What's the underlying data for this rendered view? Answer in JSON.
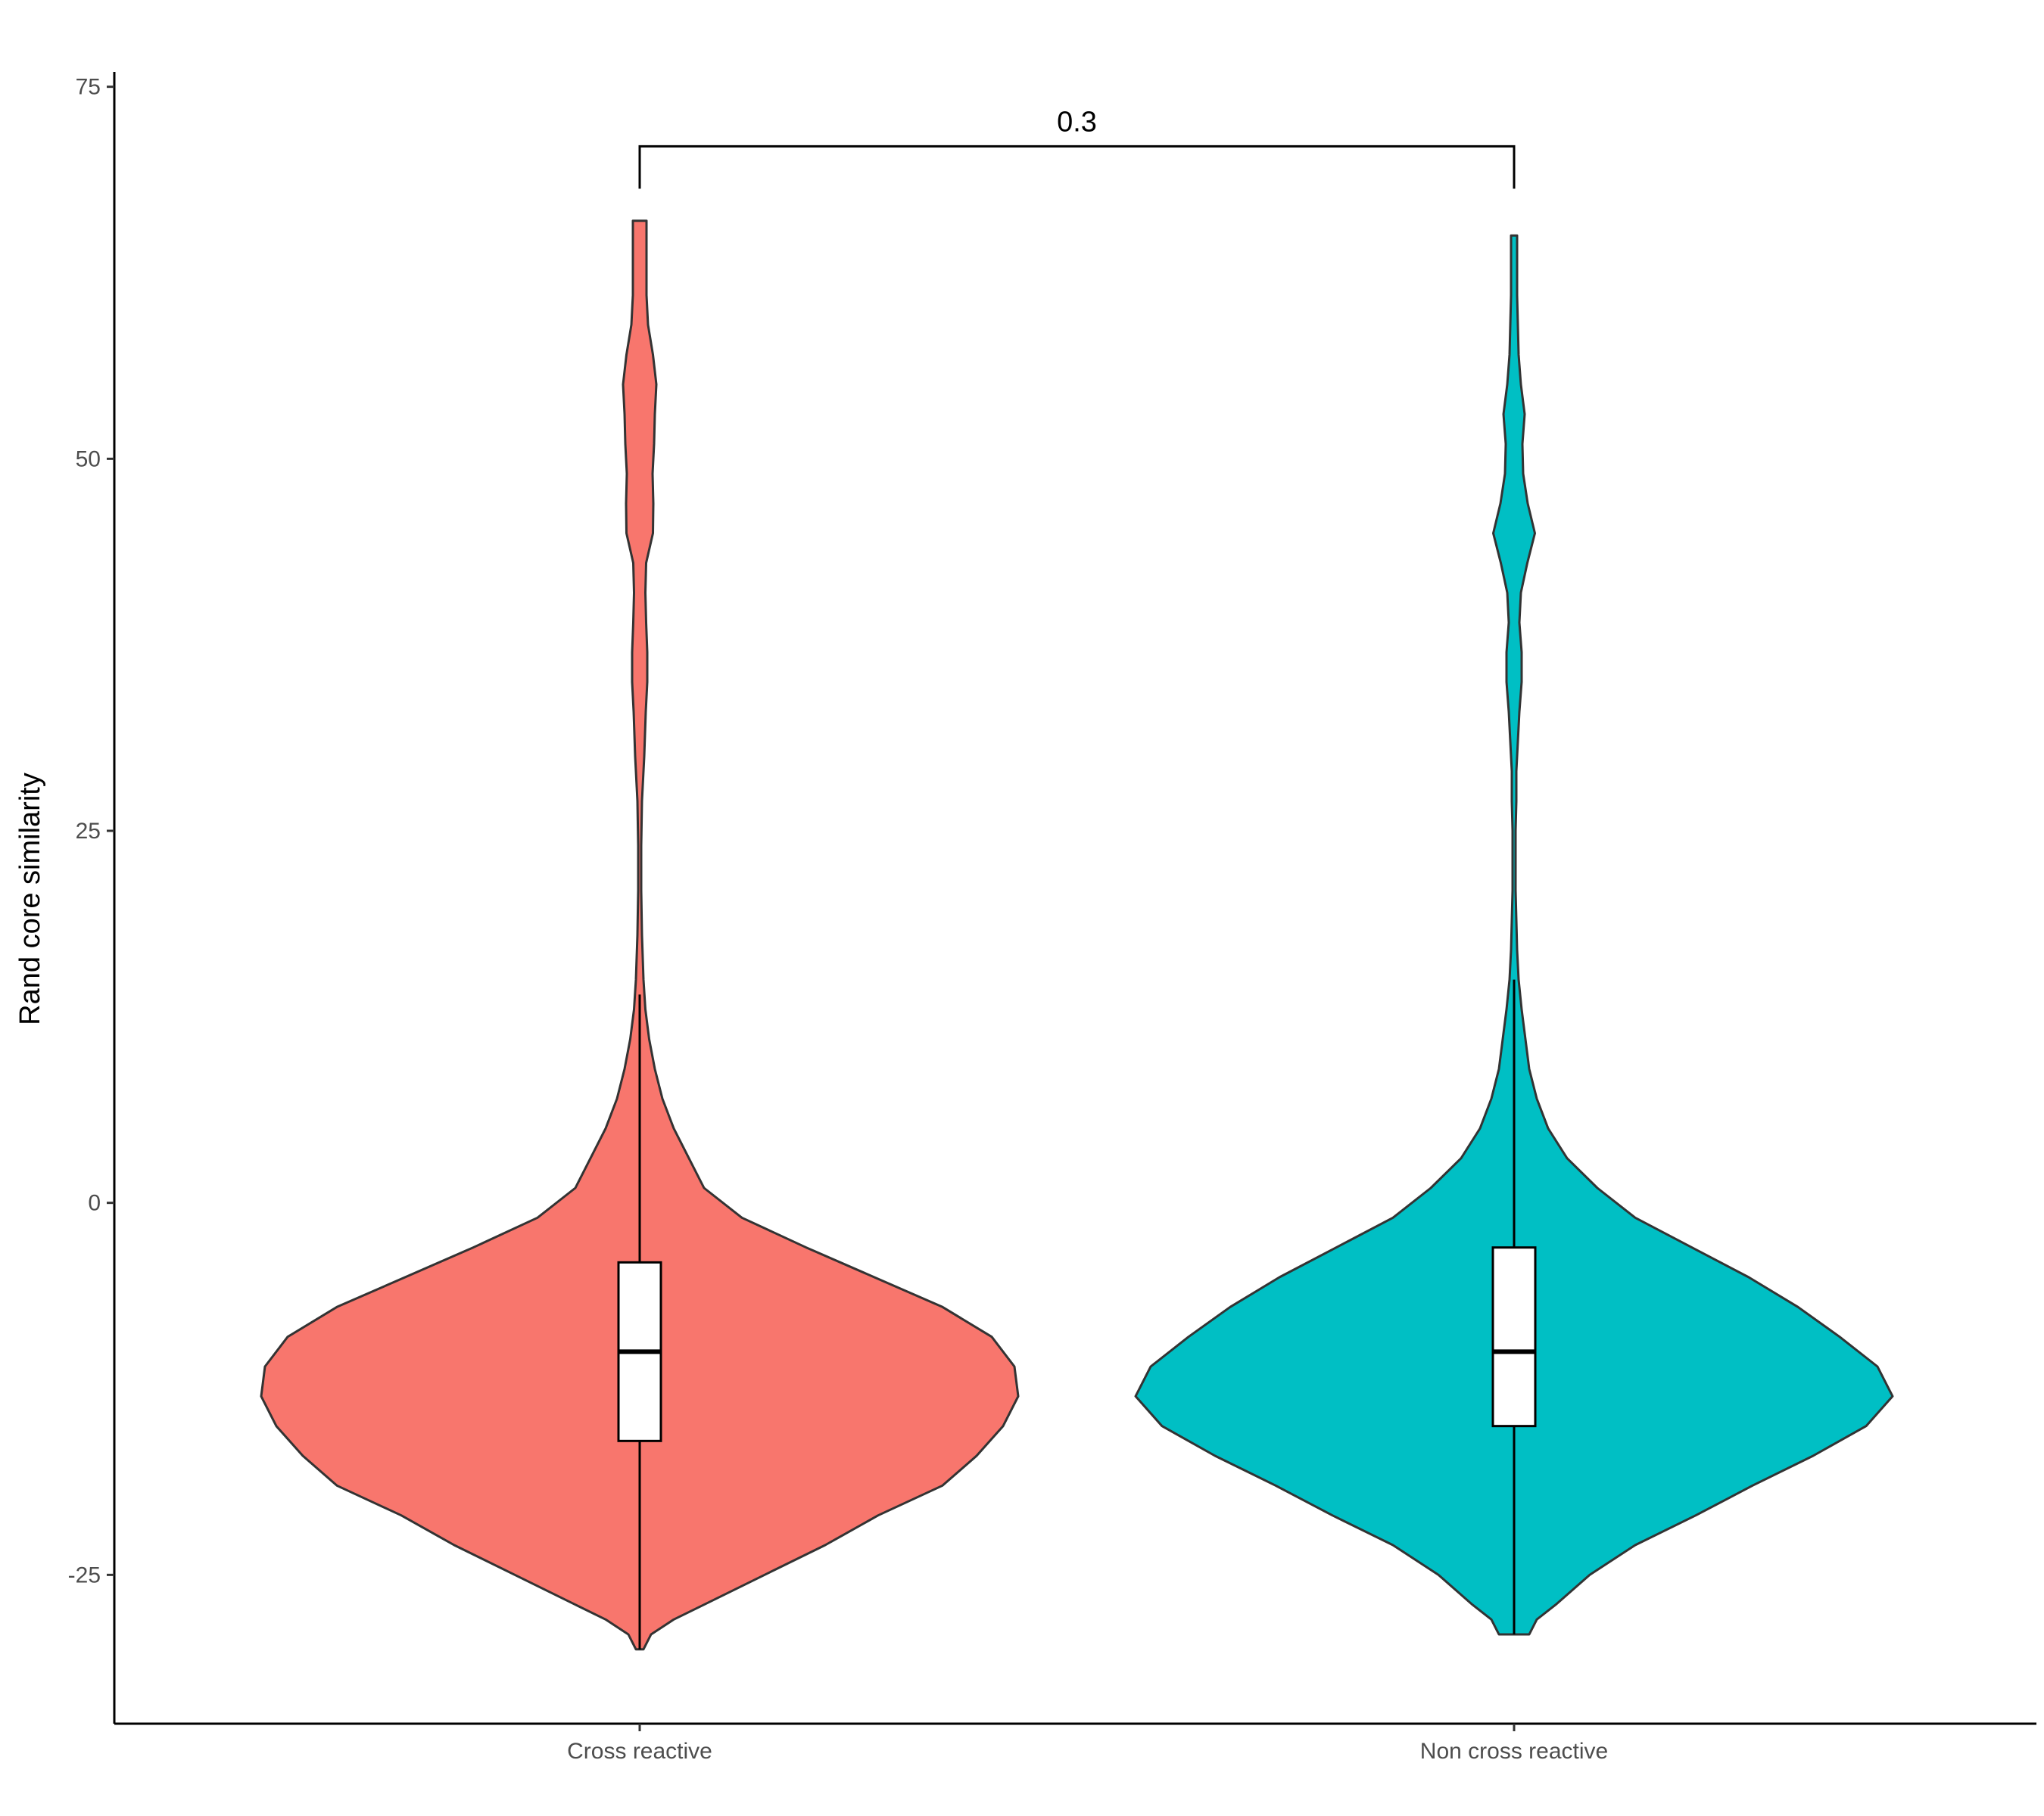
{
  "chart_data": {
    "type": "violin",
    "ylabel": "Rand core similarity",
    "xlabel": "",
    "ylim": [
      -35,
      76
    ],
    "yticks": [
      -25,
      0,
      25,
      50,
      75
    ],
    "ytick_labels": [
      "-25",
      "0",
      "25",
      "50",
      "75"
    ],
    "grid": false,
    "legend": "none",
    "categories": [
      "Cross reactive",
      "Non cross reactive"
    ],
    "groups": [
      {
        "name": "Cross reactive",
        "fill": "#F8766D",
        "range": [
          -30,
          66
        ],
        "box": {
          "whisker_low": -30,
          "q1": -16,
          "median": -10,
          "q3": -4,
          "whisker_high": 14
        },
        "density": [
          [
            -30,
            0.01
          ],
          [
            -29,
            0.03
          ],
          [
            -28,
            0.09
          ],
          [
            -27,
            0.17
          ],
          [
            -25,
            0.33
          ],
          [
            -23,
            0.49
          ],
          [
            -21,
            0.63
          ],
          [
            -19,
            0.8
          ],
          [
            -17,
            0.89
          ],
          [
            -15,
            0.96
          ],
          [
            -13,
            1.0
          ],
          [
            -11,
            0.99
          ],
          [
            -9,
            0.93
          ],
          [
            -7,
            0.8
          ],
          [
            -5,
            0.62
          ],
          [
            -3,
            0.44
          ],
          [
            -1,
            0.27
          ],
          [
            1,
            0.17
          ],
          [
            3,
            0.13
          ],
          [
            5,
            0.09
          ],
          [
            7,
            0.06
          ],
          [
            9,
            0.04
          ],
          [
            11,
            0.025
          ],
          [
            13,
            0.015
          ],
          [
            15,
            0.01
          ],
          [
            18,
            0.006
          ],
          [
            21,
            0.004
          ],
          [
            24,
            0.004
          ],
          [
            27,
            0.006
          ],
          [
            30,
            0.012
          ],
          [
            33,
            0.016
          ],
          [
            35,
            0.02
          ],
          [
            37,
            0.02
          ],
          [
            39,
            0.017
          ],
          [
            41,
            0.015
          ],
          [
            43,
            0.017
          ],
          [
            45,
            0.035
          ],
          [
            47,
            0.036
          ],
          [
            49,
            0.034
          ],
          [
            51,
            0.038
          ],
          [
            53,
            0.04
          ],
          [
            55,
            0.044
          ],
          [
            57,
            0.035
          ],
          [
            59,
            0.022
          ],
          [
            61,
            0.018
          ],
          [
            63,
            0.018
          ],
          [
            65,
            0.018
          ],
          [
            66,
            0.018
          ]
        ]
      },
      {
        "name": "Non cross reactive",
        "fill": "#00BFC4",
        "range": [
          -29,
          65
        ],
        "box": {
          "whisker_low": -29,
          "q1": -15,
          "median": -10,
          "q3": -3,
          "whisker_high": 15
        },
        "density": [
          [
            -29,
            0.04
          ],
          [
            -28,
            0.06
          ],
          [
            -27,
            0.11
          ],
          [
            -25,
            0.2
          ],
          [
            -23,
            0.32
          ],
          [
            -21,
            0.48
          ],
          [
            -19,
            0.63
          ],
          [
            -17,
            0.79
          ],
          [
            -15,
            0.93
          ],
          [
            -13,
            1.0
          ],
          [
            -11,
            0.96
          ],
          [
            -9,
            0.86
          ],
          [
            -7,
            0.75
          ],
          [
            -5,
            0.62
          ],
          [
            -3,
            0.47
          ],
          [
            -1,
            0.32
          ],
          [
            1,
            0.22
          ],
          [
            3,
            0.14
          ],
          [
            5,
            0.09
          ],
          [
            7,
            0.06
          ],
          [
            9,
            0.04
          ],
          [
            11,
            0.03
          ],
          [
            13,
            0.02
          ],
          [
            15,
            0.012
          ],
          [
            17,
            0.008
          ],
          [
            19,
            0.006
          ],
          [
            21,
            0.004
          ],
          [
            23,
            0.004
          ],
          [
            25,
            0.004
          ],
          [
            27,
            0.006
          ],
          [
            29,
            0.006
          ],
          [
            31,
            0.01
          ],
          [
            33,
            0.014
          ],
          [
            35,
            0.02
          ],
          [
            37,
            0.02
          ],
          [
            39,
            0.014
          ],
          [
            41,
            0.018
          ],
          [
            43,
            0.035
          ],
          [
            45,
            0.055
          ],
          [
            47,
            0.036
          ],
          [
            49,
            0.024
          ],
          [
            51,
            0.022
          ],
          [
            53,
            0.028
          ],
          [
            55,
            0.018
          ],
          [
            57,
            0.012
          ],
          [
            59,
            0.01
          ],
          [
            61,
            0.008
          ],
          [
            63,
            0.008
          ],
          [
            65,
            0.008
          ]
        ]
      }
    ],
    "annotations": [
      {
        "text": "0.3",
        "between": [
          "Cross reactive",
          "Non cross reactive"
        ],
        "y": 71
      }
    ]
  }
}
